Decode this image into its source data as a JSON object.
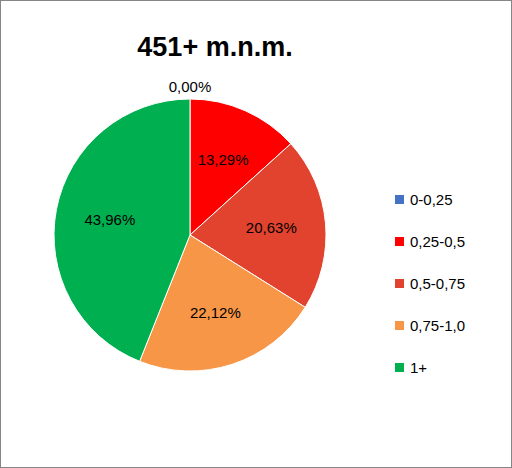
{
  "chart_data": {
    "type": "pie",
    "title": "451+ m.n.m.",
    "categories": [
      "0-0,25",
      "0,25-0,5",
      "0,5-0,75",
      "0,75-1,0",
      "1+"
    ],
    "values": [
      0,
      13.29,
      20.63,
      22.12,
      43.96
    ],
    "value_labels": [
      "0,00%",
      "13,29%",
      "20,63%",
      "22,12%",
      "43,96%"
    ],
    "colors": [
      "#4472c4",
      "#ff0000",
      "#e2432e",
      "#f79646",
      "#00b050"
    ],
    "data_labels": true,
    "legend": "right"
  }
}
